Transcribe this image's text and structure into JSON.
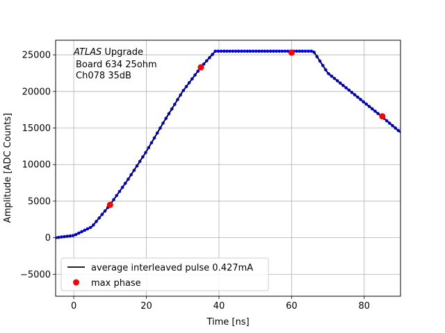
{
  "chart_data": {
    "type": "line",
    "title": "",
    "xlabel": "Time [ns]",
    "ylabel": "Amplitude [ADC Counts]",
    "xlim": [
      -5,
      90
    ],
    "ylim": [
      -8000,
      27000
    ],
    "xticks": [
      0,
      20,
      40,
      60,
      80
    ],
    "yticks": [
      -5000,
      0,
      5000,
      10000,
      15000,
      20000,
      25000
    ],
    "grid": true,
    "legend_position": "lower left",
    "annotation": {
      "italic": "ATLAS",
      "line1_rest": " Upgrade",
      "line2": "Board 634 25ohm",
      "line3": "Ch078 35dB"
    },
    "colors": {
      "average_line": "#000000",
      "max_phase": "#ff0000",
      "samples": "#0000ff"
    },
    "series": [
      {
        "name": "average interleaved pulse 0.427mA",
        "style": "line",
        "x": [
          -5,
          0,
          5,
          10,
          15,
          20,
          25,
          30,
          35,
          39,
          66,
          70,
          80,
          85,
          90
        ],
        "y": [
          0,
          300,
          1500,
          4500,
          8000,
          11800,
          16000,
          20000,
          23300,
          25500,
          25500,
          22500,
          18500,
          16500,
          14400
        ]
      },
      {
        "name": "max phase",
        "style": "markers",
        "x": [
          10,
          35,
          60,
          85
        ],
        "y": [
          4500,
          23300,
          25300,
          16600
        ]
      }
    ],
    "sample_dots": {
      "spacing_ns": 0.8,
      "color": "#0000ff"
    }
  }
}
